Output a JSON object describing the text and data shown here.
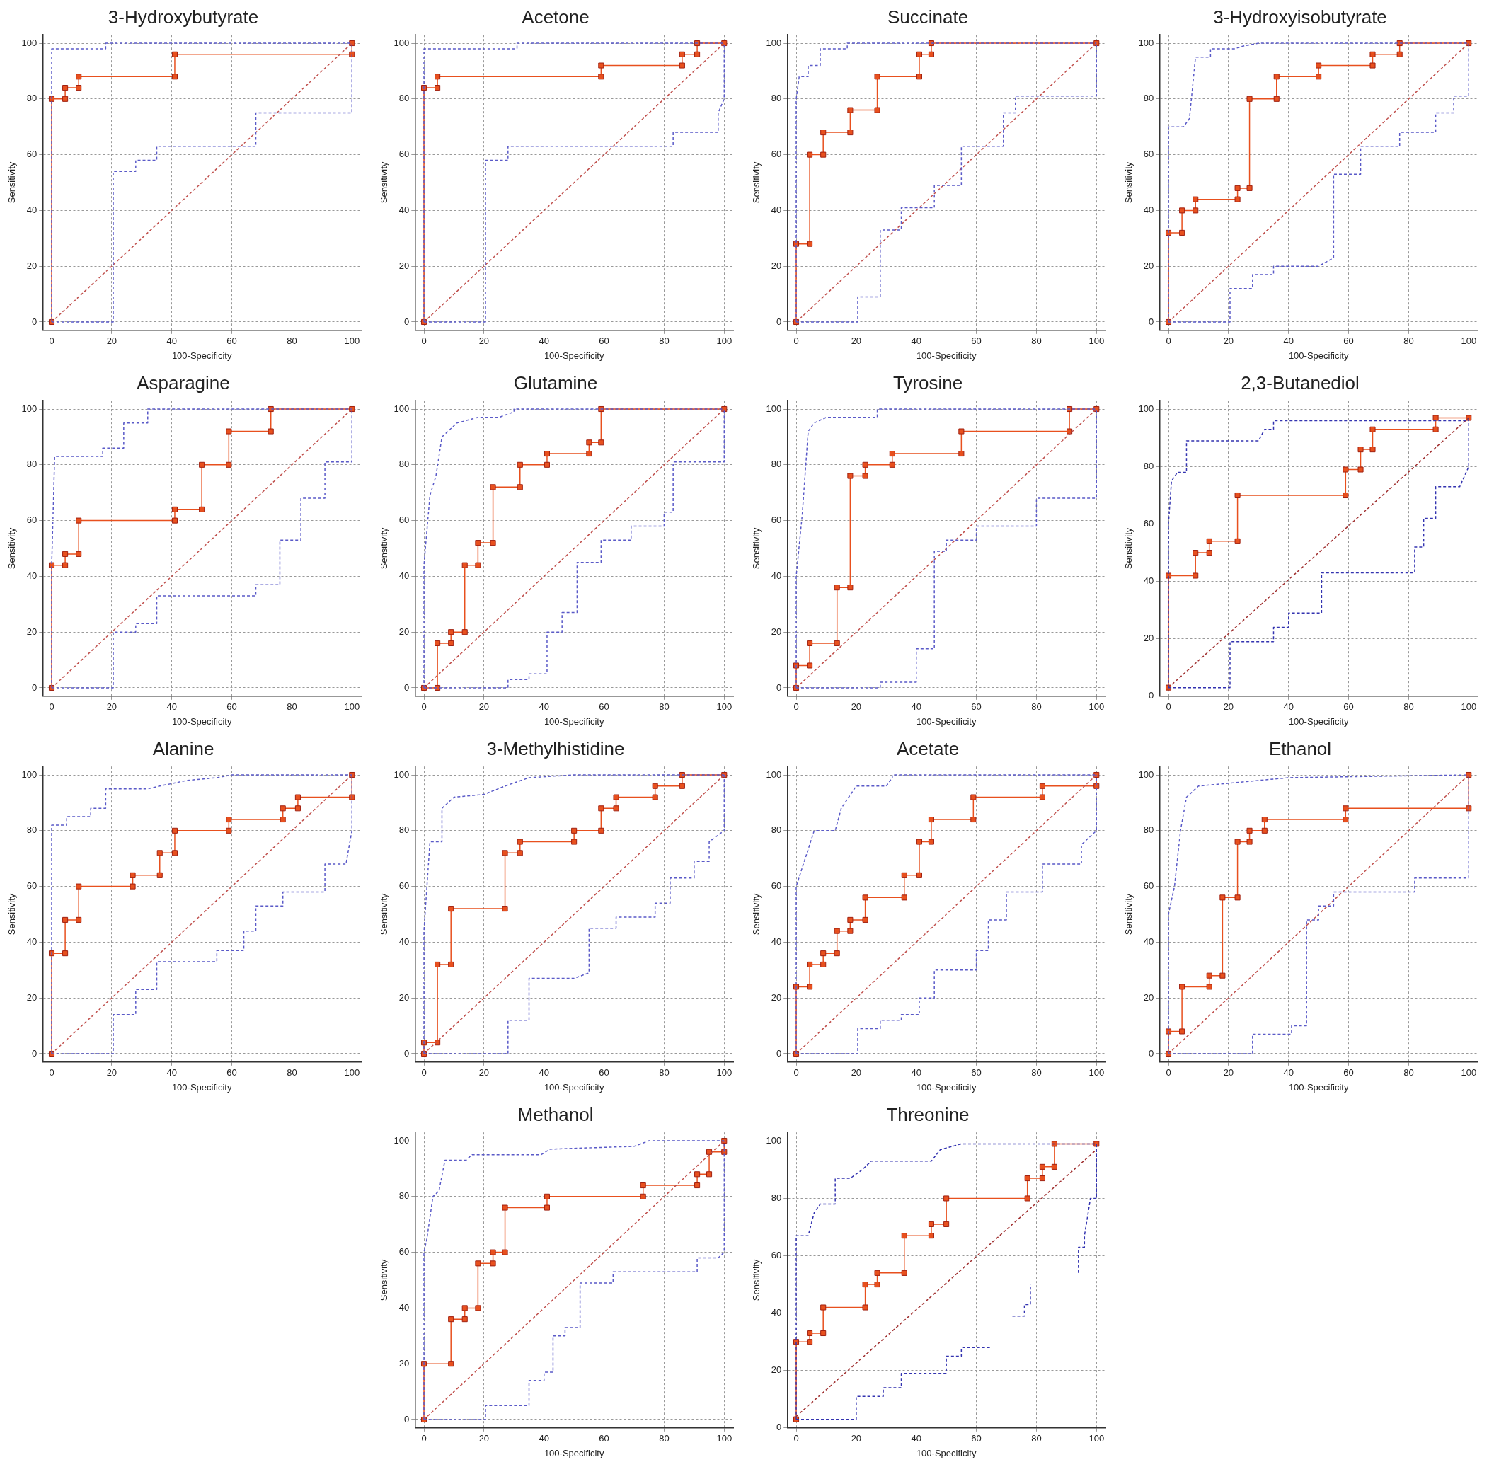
{
  "chart_data": [
    {
      "type": "line",
      "title": "3-Hydroxybutyrate",
      "xlabel": "100-Specificity",
      "ylabel": "Sensitivity",
      "xlim": [
        -3,
        103
      ],
      "ylim": [
        -3,
        103
      ],
      "xticks": [
        0,
        20,
        40,
        60,
        80,
        100
      ],
      "yticks": [
        0,
        20,
        40,
        60,
        80,
        100
      ],
      "grid": true,
      "series": [
        {
          "color": "#5a5ac8",
          "line_style": "dashed",
          "marker": "none",
          "x": [
            0,
            0,
            18,
            18,
            100
          ],
          "values": [
            0,
            98,
            98,
            100,
            100
          ]
        },
        {
          "color": "#5a5ac8",
          "line_style": "dashed",
          "marker": "none",
          "x": [
            0,
            20.5,
            20.5,
            28,
            28,
            35,
            35,
            68,
            68,
            100,
            100
          ],
          "values": [
            0,
            0,
            54,
            54,
            58,
            58,
            63,
            63,
            75,
            75,
            100
          ]
        },
        {
          "color": "#c0504d",
          "line_style": "dashed",
          "marker": "none",
          "x": [
            0,
            100
          ],
          "values": [
            0,
            100
          ]
        },
        {
          "color": "#e8501e",
          "line_style": "solid",
          "marker": "square",
          "x": [
            0,
            0,
            4.5,
            4.5,
            9,
            9,
            41,
            41,
            100,
            100
          ],
          "values": [
            0,
            80,
            80,
            84,
            84,
            88,
            88,
            96,
            96,
            100
          ]
        }
      ]
    },
    {
      "type": "line",
      "title": "Acetone",
      "xlabel": "100-Specificity",
      "ylabel": "Sensitivity",
      "xlim": [
        -3,
        103
      ],
      "ylim": [
        -3,
        103
      ],
      "xticks": [
        0,
        20,
        40,
        60,
        80,
        100
      ],
      "yticks": [
        0,
        20,
        40,
        60,
        80,
        100
      ],
      "grid": true,
      "series": [
        {
          "color": "#5a5ac8",
          "line_style": "dashed",
          "marker": "none",
          "x": [
            0,
            0,
            31,
            31,
            100
          ],
          "values": [
            0,
            98,
            98,
            100,
            100
          ]
        },
        {
          "color": "#5a5ac8",
          "line_style": "dashed",
          "marker": "none",
          "x": [
            0,
            20.5,
            20.5,
            28,
            28,
            83,
            83,
            98,
            98,
            100,
            100
          ],
          "values": [
            0,
            0,
            58,
            58,
            63,
            63,
            68,
            68,
            75,
            80,
            100
          ]
        },
        {
          "color": "#c0504d",
          "line_style": "dashed",
          "marker": "none",
          "x": [
            0,
            100
          ],
          "values": [
            0,
            100
          ]
        },
        {
          "color": "#e8501e",
          "line_style": "solid",
          "marker": "square",
          "x": [
            0,
            0,
            4.5,
            4.5,
            59,
            59,
            86,
            86,
            91,
            91,
            100
          ],
          "values": [
            0,
            84,
            84,
            88,
            88,
            92,
            92,
            96,
            96,
            100,
            100
          ]
        }
      ]
    },
    {
      "type": "line",
      "title": "Succinate",
      "xlabel": "100-Specificity",
      "ylabel": "Sensitivity",
      "xlim": [
        -3,
        103
      ],
      "ylim": [
        -3,
        103
      ],
      "xticks": [
        0,
        20,
        40,
        60,
        80,
        100
      ],
      "yticks": [
        0,
        20,
        40,
        60,
        80,
        100
      ],
      "grid": true,
      "series": [
        {
          "color": "#5a5ac8",
          "line_style": "dashed",
          "marker": "none",
          "x": [
            0,
            0,
            1,
            4,
            4,
            8,
            8,
            17,
            17,
            100
          ],
          "values": [
            0,
            80,
            88,
            88,
            92,
            92,
            98,
            98,
            100,
            100
          ]
        },
        {
          "color": "#5a5ac8",
          "line_style": "dashed",
          "marker": "none",
          "x": [
            0,
            20.5,
            20.5,
            28,
            28,
            35,
            35,
            46,
            46,
            55,
            55,
            69,
            69,
            73,
            73,
            100,
            100
          ],
          "values": [
            0,
            0,
            9,
            9,
            33,
            33,
            41,
            41,
            49,
            49,
            63,
            63,
            75,
            75,
            81,
            81,
            100
          ]
        },
        {
          "color": "#c0504d",
          "line_style": "dashed",
          "marker": "none",
          "x": [
            0,
            100
          ],
          "values": [
            0,
            100
          ]
        },
        {
          "color": "#e8501e",
          "line_style": "solid",
          "marker": "square",
          "x": [
            0,
            0,
            4.5,
            4.5,
            9,
            9,
            18,
            18,
            27,
            27,
            41,
            41,
            45,
            45,
            100
          ],
          "values": [
            0,
            28,
            28,
            60,
            60,
            68,
            68,
            76,
            76,
            88,
            88,
            96,
            96,
            100,
            100
          ]
        }
      ]
    },
    {
      "type": "line",
      "title": "3-Hydroxyisobutyrate",
      "xlabel": "100-Specificity",
      "ylabel": "Sensitivity",
      "xlim": [
        -3,
        103
      ],
      "ylim": [
        -3,
        103
      ],
      "xticks": [
        0,
        20,
        40,
        60,
        80,
        100
      ],
      "yticks": [
        0,
        20,
        40,
        60,
        80,
        100
      ],
      "grid": true,
      "series": [
        {
          "color": "#5a5ac8",
          "line_style": "dashed",
          "marker": "none",
          "x": [
            0,
            0,
            5,
            7,
            9,
            14,
            14,
            22,
            25,
            30,
            100
          ],
          "values": [
            0,
            70,
            70,
            73,
            95,
            95,
            98,
            98,
            99,
            100,
            100
          ]
        },
        {
          "color": "#5a5ac8",
          "line_style": "dashed",
          "marker": "none",
          "x": [
            0,
            20.5,
            20.5,
            28,
            28,
            35,
            35,
            50,
            55,
            55,
            64,
            64,
            77,
            77,
            89,
            89,
            95,
            95,
            100,
            100
          ],
          "values": [
            0,
            0,
            12,
            12,
            17,
            17,
            20,
            20,
            23,
            53,
            53,
            63,
            63,
            68,
            68,
            75,
            75,
            81,
            81,
            100
          ]
        },
        {
          "color": "#c0504d",
          "line_style": "dashed",
          "marker": "none",
          "x": [
            0,
            100
          ],
          "values": [
            0,
            100
          ]
        },
        {
          "color": "#e8501e",
          "line_style": "solid",
          "marker": "square",
          "x": [
            0,
            0,
            4.5,
            4.5,
            9,
            9,
            23,
            23,
            27,
            27,
            36,
            36,
            50,
            50,
            68,
            68,
            77,
            77,
            100
          ],
          "values": [
            0,
            32,
            32,
            40,
            40,
            44,
            44,
            48,
            48,
            80,
            80,
            88,
            88,
            92,
            92,
            96,
            96,
            100,
            100
          ]
        }
      ]
    },
    {
      "type": "line",
      "title": "Asparagine",
      "xlabel": "100-Specificity",
      "ylabel": "Sensitivity",
      "xlim": [
        -3,
        103
      ],
      "ylim": [
        -3,
        103
      ],
      "xticks": [
        0,
        20,
        40,
        60,
        80,
        100
      ],
      "yticks": [
        0,
        20,
        40,
        60,
        80,
        100
      ],
      "grid": true,
      "series": [
        {
          "color": "#5a5ac8",
          "line_style": "dashed",
          "marker": "none",
          "x": [
            0,
            0,
            1,
            17,
            17,
            24,
            24,
            32,
            32,
            100
          ],
          "values": [
            0,
            44,
            83,
            83,
            86,
            86,
            95,
            95,
            100,
            100
          ]
        },
        {
          "color": "#5a5ac8",
          "line_style": "dashed",
          "marker": "none",
          "x": [
            0,
            20.5,
            20.5,
            28,
            28,
            35,
            35,
            68,
            68,
            76,
            76,
            83,
            83,
            91,
            91,
            100,
            100
          ],
          "values": [
            0,
            0,
            20,
            20,
            23,
            23,
            33,
            33,
            37,
            37,
            53,
            53,
            68,
            68,
            81,
            81,
            100
          ]
        },
        {
          "color": "#c0504d",
          "line_style": "dashed",
          "marker": "none",
          "x": [
            0,
            100
          ],
          "values": [
            0,
            100
          ]
        },
        {
          "color": "#e8501e",
          "line_style": "solid",
          "marker": "square",
          "x": [
            0,
            0,
            4.5,
            4.5,
            9,
            9,
            41,
            41,
            50,
            50,
            59,
            59,
            73,
            73,
            100
          ],
          "values": [
            0,
            44,
            44,
            48,
            48,
            60,
            60,
            64,
            64,
            80,
            80,
            92,
            92,
            100,
            100
          ]
        }
      ]
    },
    {
      "type": "line",
      "title": "Glutamine",
      "xlabel": "100-Specificity",
      "ylabel": "Sensitivity",
      "xlim": [
        -3,
        103
      ],
      "ylim": [
        -3,
        103
      ],
      "xticks": [
        0,
        20,
        40,
        60,
        80,
        100
      ],
      "yticks": [
        0,
        20,
        40,
        60,
        80,
        100
      ],
      "grid": true,
      "series": [
        {
          "color": "#5a5ac8",
          "line_style": "dashed",
          "marker": "none",
          "x": [
            0,
            0,
            2,
            4,
            6,
            11,
            18,
            25,
            30,
            30,
            100
          ],
          "values": [
            0,
            44,
            69,
            76,
            90,
            95,
            97,
            97,
            99,
            100,
            100
          ]
        },
        {
          "color": "#5a5ac8",
          "line_style": "dashed",
          "marker": "none",
          "x": [
            0,
            28,
            28,
            35,
            35,
            41,
            41,
            46,
            46,
            51,
            51,
            59,
            59,
            69,
            69,
            80,
            80,
            83,
            83,
            100,
            100
          ],
          "values": [
            0,
            0,
            3,
            3,
            5,
            5,
            20,
            20,
            27,
            27,
            45,
            45,
            53,
            53,
            58,
            58,
            63,
            63,
            81,
            81,
            100
          ]
        },
        {
          "color": "#c0504d",
          "line_style": "dashed",
          "marker": "none",
          "x": [
            0,
            100
          ],
          "values": [
            0,
            100
          ]
        },
        {
          "color": "#e8501e",
          "line_style": "solid",
          "marker": "square",
          "x": [
            0,
            4.5,
            4.5,
            9,
            9,
            13.6,
            13.6,
            18,
            18,
            23,
            23,
            32,
            32,
            41,
            41,
            55,
            55,
            59,
            59,
            100
          ],
          "values": [
            0,
            0,
            16,
            16,
            20,
            20,
            44,
            44,
            52,
            52,
            72,
            72,
            80,
            80,
            84,
            84,
            88,
            88,
            100,
            100
          ]
        }
      ]
    },
    {
      "type": "line",
      "title": "Tyrosine",
      "xlabel": "100-Specificity",
      "ylabel": "Sensitivity",
      "xlim": [
        -3,
        103
      ],
      "ylim": [
        -3,
        103
      ],
      "xticks": [
        0,
        20,
        40,
        60,
        80,
        100
      ],
      "yticks": [
        0,
        20,
        40,
        60,
        80,
        100
      ],
      "grid": true,
      "series": [
        {
          "color": "#5a5ac8",
          "line_style": "dashed",
          "marker": "none",
          "x": [
            0,
            0,
            2,
            4,
            6,
            10,
            27,
            27,
            100
          ],
          "values": [
            0,
            40,
            62,
            92,
            95,
            97,
            97,
            100,
            100
          ]
        },
        {
          "color": "#5a5ac8",
          "line_style": "dashed",
          "marker": "none",
          "x": [
            0,
            28,
            28,
            40,
            40,
            46,
            46,
            50,
            50,
            60,
            60,
            80,
            80,
            100,
            100
          ],
          "values": [
            0,
            0,
            2,
            2,
            14,
            14,
            49,
            49,
            53,
            53,
            58,
            58,
            68,
            68,
            100
          ]
        },
        {
          "color": "#c0504d",
          "line_style": "dashed",
          "marker": "none",
          "x": [
            0,
            100
          ],
          "values": [
            0,
            100
          ]
        },
        {
          "color": "#e8501e",
          "line_style": "solid",
          "marker": "square",
          "x": [
            0,
            0,
            4.5,
            4.5,
            13.6,
            13.6,
            18,
            18,
            23,
            23,
            32,
            32,
            55,
            55,
            91,
            91,
            100
          ],
          "values": [
            0,
            8,
            8,
            16,
            16,
            36,
            36,
            76,
            76,
            80,
            80,
            84,
            84,
            92,
            92,
            100,
            100
          ]
        }
      ]
    },
    {
      "type": "line",
      "title": "2,3-Butanediol",
      "xlabel": "100-Specificity",
      "ylabel": "Sensitivity",
      "xlim": [
        -3,
        103
      ],
      "ylim": [
        0,
        103
      ],
      "xticks": [
        0,
        20,
        40,
        60,
        80,
        100
      ],
      "yticks": [
        0,
        20,
        40,
        60,
        80,
        100
      ],
      "grid": true,
      "series": [
        {
          "color": "#3333b0",
          "line_style": "dashed",
          "marker": "none",
          "x": [
            0,
            0,
            1,
            3,
            6,
            6,
            30,
            32,
            35,
            35,
            100
          ],
          "values": [
            3,
            60,
            75,
            78,
            78,
            89,
            89,
            93,
            93,
            96,
            96
          ]
        },
        {
          "color": "#3333b0",
          "line_style": "dashed",
          "marker": "none",
          "x": [
            0,
            20.5,
            20.5,
            35,
            35,
            40,
            40,
            51,
            51,
            82,
            82,
            85,
            85,
            89,
            89,
            97,
            100,
            100
          ],
          "values": [
            3,
            3,
            19,
            19,
            24,
            24,
            29,
            29,
            43,
            43,
            52,
            52,
            62,
            62,
            73,
            73,
            80,
            97
          ]
        },
        {
          "color": "#a03030",
          "line_style": "dashed",
          "marker": "none",
          "x": [
            0,
            100
          ],
          "values": [
            3,
            97
          ]
        },
        {
          "color": "#e8501e",
          "line_style": "solid",
          "marker": "square",
          "x": [
            0,
            0,
            9,
            9,
            13.6,
            13.6,
            23,
            23,
            59,
            59,
            64,
            64,
            68,
            68,
            89,
            89,
            100
          ],
          "values": [
            3,
            42,
            42,
            50,
            50,
            54,
            54,
            70,
            70,
            79,
            79,
            86,
            86,
            93,
            93,
            97,
            97
          ]
        }
      ]
    },
    {
      "type": "line",
      "title": "Alanine",
      "xlabel": "100-Specificity",
      "ylabel": "Sensitivity",
      "xlim": [
        -3,
        103
      ],
      "ylim": [
        -3,
        103
      ],
      "xticks": [
        0,
        20,
        40,
        60,
        80,
        100
      ],
      "yticks": [
        0,
        20,
        40,
        60,
        80,
        100
      ],
      "grid": true,
      "series": [
        {
          "color": "#5a5ac8",
          "line_style": "dashed",
          "marker": "none",
          "x": [
            0,
            0,
            5,
            5,
            13,
            13,
            18,
            18,
            32,
            36,
            45,
            55,
            60,
            100
          ],
          "values": [
            0,
            82,
            82,
            85,
            85,
            88,
            88,
            95,
            95,
            96,
            98,
            99,
            100,
            100
          ]
        },
        {
          "color": "#5a5ac8",
          "line_style": "dashed",
          "marker": "none",
          "x": [
            0,
            20.5,
            20.5,
            28,
            28,
            35,
            35,
            55,
            55,
            64,
            64,
            68,
            68,
            77,
            77,
            91,
            91,
            98,
            100,
            100
          ],
          "values": [
            0,
            0,
            14,
            14,
            23,
            23,
            33,
            33,
            37,
            37,
            44,
            44,
            53,
            53,
            58,
            58,
            68,
            68,
            80,
            100
          ]
        },
        {
          "color": "#c0504d",
          "line_style": "dashed",
          "marker": "none",
          "x": [
            0,
            100
          ],
          "values": [
            0,
            100
          ]
        },
        {
          "color": "#e8501e",
          "line_style": "solid",
          "marker": "square",
          "x": [
            0,
            0,
            4.5,
            4.5,
            9,
            9,
            27,
            27,
            36,
            36,
            41,
            41,
            59,
            59,
            77,
            77,
            82,
            82,
            100,
            100
          ],
          "values": [
            0,
            36,
            36,
            48,
            48,
            60,
            60,
            64,
            64,
            72,
            72,
            80,
            80,
            84,
            84,
            88,
            88,
            92,
            92,
            100
          ]
        }
      ]
    },
    {
      "type": "line",
      "title": "3-Methylhistidine",
      "xlabel": "100-Specificity",
      "ylabel": "Sensitivity",
      "xlim": [
        -3,
        103
      ],
      "ylim": [
        -3,
        103
      ],
      "xticks": [
        0,
        20,
        40,
        60,
        80,
        100
      ],
      "yticks": [
        0,
        20,
        40,
        60,
        80,
        100
      ],
      "grid": true,
      "series": [
        {
          "color": "#5a5ac8",
          "line_style": "dashed",
          "marker": "none",
          "x": [
            0,
            0,
            2,
            6,
            6,
            10,
            20,
            27,
            35,
            50,
            100
          ],
          "values": [
            0,
            44,
            76,
            76,
            88,
            92,
            93,
            96,
            99,
            100,
            100
          ]
        },
        {
          "color": "#5a5ac8",
          "line_style": "dashed",
          "marker": "none",
          "x": [
            0,
            28,
            28,
            35,
            35,
            50,
            55,
            55,
            64,
            64,
            77,
            77,
            82,
            82,
            90,
            90,
            95,
            95,
            100,
            100
          ],
          "values": [
            0,
            0,
            12,
            12,
            27,
            27,
            29,
            45,
            45,
            49,
            49,
            54,
            54,
            63,
            63,
            69,
            69,
            76,
            80,
            100
          ]
        },
        {
          "color": "#c0504d",
          "line_style": "dashed",
          "marker": "none",
          "x": [
            0,
            100
          ],
          "values": [
            0,
            100
          ]
        },
        {
          "color": "#e8501e",
          "line_style": "solid",
          "marker": "square",
          "x": [
            0,
            0,
            4.5,
            4.5,
            9,
            9,
            27,
            27,
            32,
            32,
            50,
            50,
            59,
            59,
            64,
            64,
            77,
            77,
            86,
            86,
            100
          ],
          "values": [
            0,
            4,
            4,
            32,
            32,
            52,
            52,
            72,
            72,
            76,
            76,
            80,
            80,
            88,
            88,
            92,
            92,
            96,
            96,
            100,
            100
          ]
        }
      ]
    },
    {
      "type": "line",
      "title": "Acetate",
      "xlabel": "100-Specificity",
      "ylabel": "Sensitivity",
      "xlim": [
        -3,
        103
      ],
      "ylim": [
        -3,
        103
      ],
      "xticks": [
        0,
        20,
        40,
        60,
        80,
        100
      ],
      "yticks": [
        0,
        20,
        40,
        60,
        80,
        100
      ],
      "grid": true,
      "series": [
        {
          "color": "#5a5ac8",
          "line_style": "dashed",
          "marker": "none",
          "x": [
            0,
            0,
            3,
            6,
            13,
            15,
            20,
            30,
            32,
            32,
            100
          ],
          "values": [
            0,
            60,
            70,
            80,
            80,
            88,
            96,
            96,
            99,
            100,
            100
          ]
        },
        {
          "color": "#5a5ac8",
          "line_style": "dashed",
          "marker": "none",
          "x": [
            0,
            20.5,
            20.5,
            28,
            28,
            35,
            35,
            41,
            41,
            46,
            46,
            60,
            60,
            64,
            64,
            70,
            70,
            82,
            82,
            95,
            95,
            100,
            100
          ],
          "values": [
            0,
            0,
            9,
            9,
            12,
            12,
            14,
            14,
            20,
            20,
            30,
            30,
            37,
            37,
            48,
            48,
            58,
            58,
            68,
            68,
            75,
            80,
            100
          ]
        },
        {
          "color": "#c0504d",
          "line_style": "dashed",
          "marker": "none",
          "x": [
            0,
            100
          ],
          "values": [
            0,
            100
          ]
        },
        {
          "color": "#e8501e",
          "line_style": "solid",
          "marker": "square",
          "x": [
            0,
            0,
            4.5,
            4.5,
            9,
            9,
            13.6,
            13.6,
            18,
            18,
            23,
            23,
            36,
            36,
            41,
            41,
            45,
            45,
            59,
            59,
            82,
            82,
            100,
            100
          ],
          "values": [
            0,
            24,
            24,
            32,
            32,
            36,
            36,
            44,
            44,
            48,
            48,
            56,
            56,
            64,
            64,
            76,
            76,
            84,
            84,
            92,
            92,
            96,
            96,
            100
          ]
        }
      ]
    },
    {
      "type": "line",
      "title": "Ethanol",
      "xlabel": "100-Specificity",
      "ylabel": "Sensitivity",
      "xlim": [
        -3,
        103
      ],
      "ylim": [
        -3,
        103
      ],
      "xticks": [
        0,
        20,
        40,
        60,
        80,
        100
      ],
      "yticks": [
        0,
        20,
        40,
        60,
        80,
        100
      ],
      "grid": true,
      "series": [
        {
          "color": "#5a5ac8",
          "line_style": "dashed",
          "marker": "none",
          "x": [
            0,
            0,
            2,
            4,
            6,
            10,
            30,
            40,
            100
          ],
          "values": [
            0,
            50,
            60,
            80,
            92,
            96,
            98,
            99,
            100
          ]
        },
        {
          "color": "#5a5ac8",
          "line_style": "dashed",
          "marker": "none",
          "x": [
            0,
            28,
            28,
            41,
            41,
            46,
            46,
            50,
            50,
            55,
            55,
            82,
            82,
            100,
            100
          ],
          "values": [
            0,
            0,
            7,
            7,
            10,
            10,
            48,
            48,
            53,
            53,
            58,
            58,
            63,
            63,
            100
          ]
        },
        {
          "color": "#c0504d",
          "line_style": "dashed",
          "marker": "none",
          "x": [
            0,
            100
          ],
          "values": [
            0,
            100
          ]
        },
        {
          "color": "#e8501e",
          "line_style": "solid",
          "marker": "square",
          "x": [
            0,
            0,
            4.5,
            4.5,
            13.6,
            13.6,
            18,
            18,
            23,
            23,
            27,
            27,
            32,
            32,
            59,
            59,
            100,
            100
          ],
          "values": [
            0,
            8,
            8,
            24,
            24,
            28,
            28,
            56,
            56,
            76,
            76,
            80,
            80,
            84,
            84,
            88,
            88,
            100
          ]
        }
      ]
    },
    {
      "type": "line",
      "title": "Methanol",
      "xlabel": "100-Specificity",
      "ylabel": "Sensitivity",
      "xlim": [
        -3,
        103
      ],
      "ylim": [
        -3,
        103
      ],
      "xticks": [
        0,
        20,
        40,
        60,
        80,
        100
      ],
      "yticks": [
        0,
        20,
        40,
        60,
        80,
        100
      ],
      "grid": true,
      "series": [
        {
          "color": "#5a5ac8",
          "line_style": "dashed",
          "marker": "none",
          "x": [
            0,
            0,
            1,
            3,
            5,
            7,
            14,
            16,
            39,
            42,
            70,
            75,
            100
          ],
          "values": [
            0,
            60,
            65,
            80,
            82,
            93,
            93,
            95,
            95,
            97,
            98,
            100,
            100
          ]
        },
        {
          "color": "#5a5ac8",
          "line_style": "dashed",
          "marker": "none",
          "x": [
            0,
            20.5,
            20.5,
            35,
            35,
            40,
            40,
            43,
            43,
            47,
            47,
            52,
            52,
            63,
            63,
            91,
            91,
            98,
            100,
            100
          ],
          "values": [
            0,
            0,
            5,
            5,
            14,
            14,
            17,
            17,
            30,
            30,
            33,
            33,
            49,
            49,
            53,
            53,
            58,
            58,
            60,
            100
          ]
        },
        {
          "color": "#c0504d",
          "line_style": "dashed",
          "marker": "none",
          "x": [
            0,
            100
          ],
          "values": [
            0,
            100
          ]
        },
        {
          "color": "#e8501e",
          "line_style": "solid",
          "marker": "square",
          "x": [
            0,
            0,
            9,
            9,
            13.6,
            13.6,
            18,
            18,
            23,
            23,
            27,
            27,
            41,
            41,
            73,
            73,
            91,
            91,
            95,
            95,
            100,
            100
          ],
          "values": [
            0,
            20,
            20,
            36,
            36,
            40,
            40,
            56,
            56,
            60,
            60,
            76,
            76,
            80,
            80,
            84,
            84,
            88,
            88,
            96,
            96,
            100
          ]
        }
      ]
    },
    {
      "type": "line",
      "title": "Threonine",
      "xlabel": "100-Specificity",
      "ylabel": "Sensitivity",
      "xlim": [
        -3,
        103
      ],
      "ylim": [
        0,
        103
      ],
      "xticks": [
        0,
        20,
        40,
        60,
        80,
        100
      ],
      "yticks": [
        0,
        20,
        40,
        60,
        80,
        100
      ],
      "grid": true,
      "series": [
        {
          "color": "#3333b0",
          "line_style": "dashed",
          "marker": "none",
          "x": [
            0,
            0,
            4,
            6,
            8,
            13,
            13,
            18,
            22,
            25,
            45,
            48,
            55,
            100,
            100
          ],
          "values": [
            3,
            67,
            67,
            75,
            78,
            78,
            87,
            87,
            90,
            93,
            93,
            97,
            99,
            99,
            80
          ]
        },
        {
          "color": "#3333b0",
          "line_style": "dashed",
          "marker": "none",
          "x": [
            0,
            20,
            20,
            29,
            29,
            35,
            35,
            50,
            50,
            55,
            55,
            65,
            68,
            72,
            76,
            76,
            78,
            78,
            86,
            94,
            94,
            96,
            96,
            98,
            100,
            100
          ],
          "values": [
            3,
            3,
            11,
            11,
            14,
            14,
            19,
            19,
            25,
            25,
            28,
            28,
            null,
            39,
            39,
            43,
            43,
            50,
            null,
            54,
            63,
            63,
            67,
            80,
            80,
            99
          ]
        },
        {
          "color": "#a03030",
          "line_style": "dashed",
          "marker": "none",
          "x": [
            0,
            100
          ],
          "values": [
            4,
            97
          ]
        },
        {
          "color": "#e8501e",
          "line_style": "solid",
          "marker": "square",
          "x": [
            0,
            0,
            4.5,
            4.5,
            9,
            9,
            23,
            23,
            27,
            27,
            36,
            36,
            45,
            45,
            50,
            50,
            77,
            77,
            82,
            82,
            86,
            86,
            100
          ],
          "values": [
            3,
            30,
            30,
            33,
            33,
            42,
            42,
            50,
            50,
            54,
            54,
            67,
            67,
            71,
            71,
            80,
            80,
            87,
            87,
            91,
            91,
            99,
            99
          ]
        }
      ]
    }
  ]
}
